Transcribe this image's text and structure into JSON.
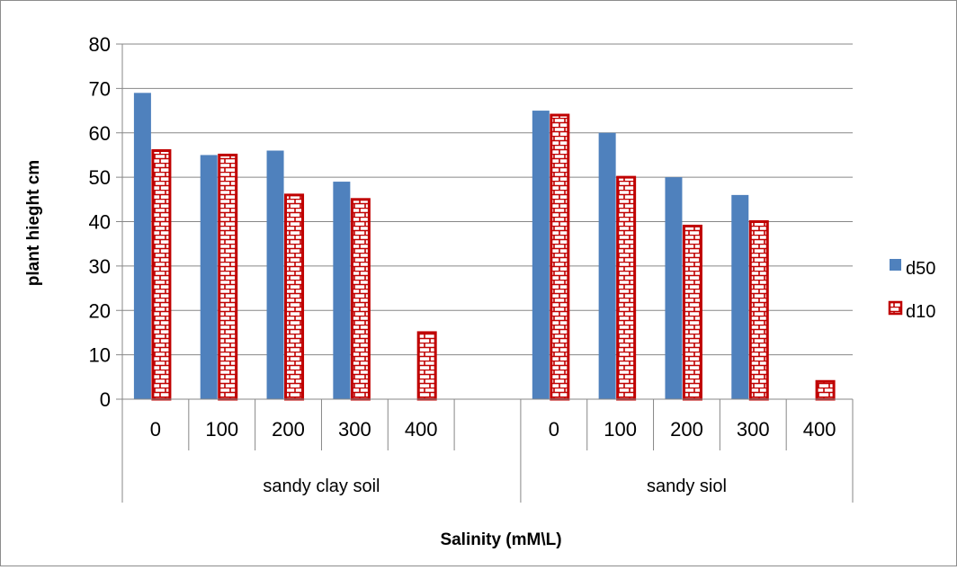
{
  "chart_data": {
    "type": "bar",
    "xlabel": "Salinity (mM\\L)",
    "ylabel": "plant hieght cm",
    "ylim": [
      0,
      80
    ],
    "yticks": [
      0,
      10,
      20,
      30,
      40,
      50,
      60,
      70,
      80
    ],
    "grid": true,
    "legend_position": "right",
    "groups": [
      {
        "name": "sandy clay soil",
        "categories": [
          "0",
          "100",
          "200",
          "300",
          "400",
          ""
        ]
      },
      {
        "name": "sandy siol",
        "categories": [
          "0",
          "100",
          "200",
          "300",
          "400"
        ]
      }
    ],
    "series": [
      {
        "name": "d50",
        "color": "#4f81bd",
        "style": "solid",
        "values": [
          69,
          55,
          56,
          49,
          null,
          null,
          65,
          60,
          50,
          46,
          null
        ]
      },
      {
        "name": "d10",
        "color": "#c00000",
        "style": "brick-pattern",
        "values": [
          56,
          55,
          46,
          45,
          15,
          null,
          64,
          50,
          39,
          40,
          4
        ]
      }
    ]
  }
}
